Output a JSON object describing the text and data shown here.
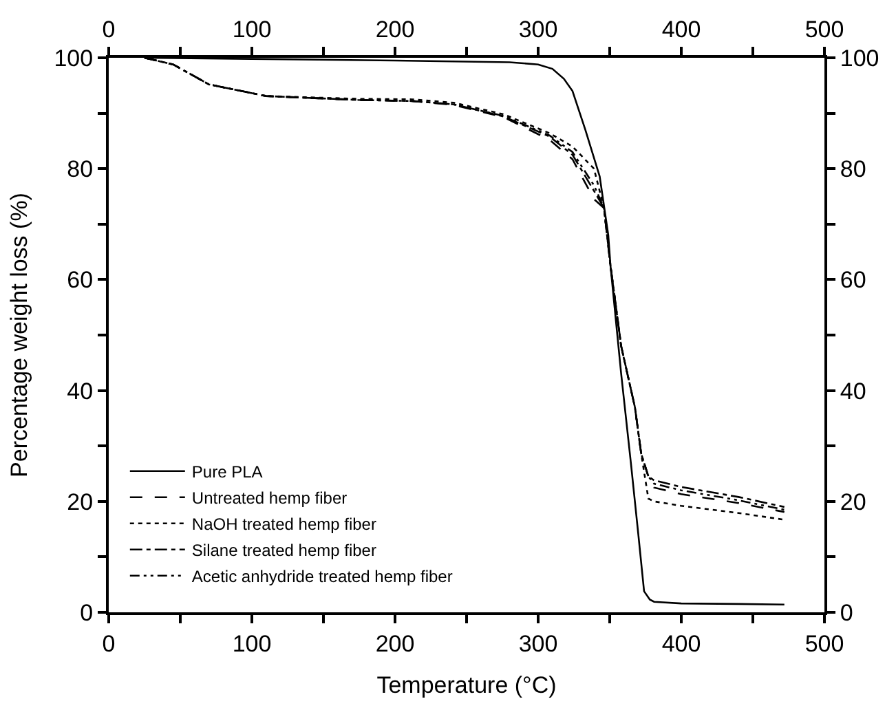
{
  "chart_data": {
    "type": "line",
    "xlabel": "Temperature (°C)",
    "ylabel": "Percentage weight loss (%)",
    "xlim": [
      0,
      500
    ],
    "xticks": [
      0,
      {
        "value": 50,
        "label": null
      },
      100,
      {
        "value": 150,
        "label": null
      },
      200,
      {
        "value": 250,
        "label": null
      },
      300,
      {
        "value": 350,
        "label": null
      },
      400,
      {
        "value": 450,
        "label": null
      },
      500
    ],
    "x2lim": [
      0,
      500
    ],
    "x2ticks": [
      0,
      {
        "value": 50,
        "label": null
      },
      100,
      {
        "value": 150,
        "label": null
      },
      200,
      {
        "value": 250,
        "label": null
      },
      300,
      {
        "value": 350,
        "label": null
      },
      400,
      {
        "value": 450,
        "label": null
      },
      500
    ],
    "ylim": [
      0,
      100
    ],
    "yticks": [
      0,
      {
        "value": 10,
        "label": null
      },
      20,
      {
        "value": 30,
        "label": null
      },
      40,
      {
        "value": 50,
        "label": null
      },
      60,
      {
        "value": 70,
        "label": null
      },
      80,
      {
        "value": 90,
        "label": null
      },
      100
    ],
    "y2lim": [
      0,
      100
    ],
    "y2ticks": [
      0,
      {
        "value": 10,
        "label": null
      },
      20,
      {
        "value": 30,
        "label": null
      },
      40,
      {
        "value": 50,
        "label": null
      },
      60,
      {
        "value": 70,
        "label": null
      },
      80,
      {
        "value": 90,
        "label": null
      },
      100
    ],
    "legend": "bottom left",
    "marker": "none",
    "series": [
      {
        "name": "Pure PLA",
        "color": "#000000",
        "line_style": "solid",
        "x": [
          25,
          100,
          200,
          280,
          300,
          310,
          318,
          324,
          333,
          343,
          349,
          350.5,
          358,
          364.8,
          370,
          374,
          378,
          381,
          400,
          440,
          472
        ],
        "values": [
          100,
          99.8,
          99.5,
          99.2,
          98.8,
          98,
          96.2,
          94,
          87,
          78.6,
          68,
          62.6,
          43,
          26.9,
          14,
          3.8,
          2.3,
          1.9,
          1.6,
          1.5,
          1.4
        ]
      },
      {
        "name": "Untreated hemp fiber",
        "color": "#000000",
        "line_style": "dashed",
        "x": [
          25,
          45,
          70,
          110,
          174,
          212,
          241,
          276,
          308,
          324,
          339,
          346,
          350.5,
          358,
          367.6,
          372,
          377,
          381,
          400,
          440,
          472
        ],
        "values": [
          100,
          98.8,
          95.2,
          93.1,
          92.4,
          92.2,
          91.5,
          89.3,
          85.2,
          81.7,
          74.5,
          72.9,
          62.6,
          48,
          37,
          28.6,
          24.5,
          22.5,
          21.3,
          19.7,
          18.1
        ]
      },
      {
        "name": "NaOH treated hemp fiber",
        "color": "#000000",
        "line_style": "dotted",
        "x": [
          25,
          45,
          70,
          110,
          174,
          212,
          241,
          276,
          308,
          324,
          339,
          346,
          350.5,
          358,
          367.6,
          372,
          377,
          381,
          400,
          440,
          472
        ],
        "values": [
          100,
          98.8,
          95.2,
          93.1,
          92.6,
          92.5,
          91.9,
          89.8,
          86.4,
          84,
          80,
          72.9,
          62.6,
          48,
          37,
          28.6,
          20.5,
          20,
          19.2,
          17.9,
          16.7
        ]
      },
      {
        "name": "Silane treated hemp fiber",
        "color": "#000000",
        "line_style": "dashdot",
        "x": [
          25,
          45,
          70,
          110,
          174,
          212,
          241,
          276,
          308,
          324,
          339,
          346,
          350.5,
          358,
          367.6,
          372,
          377,
          381,
          400,
          440,
          472
        ],
        "values": [
          100,
          98.8,
          95.2,
          93.1,
          92.4,
          92.2,
          91.6,
          89.4,
          85.8,
          82.5,
          76,
          72.9,
          62.6,
          48,
          37,
          28.6,
          24.5,
          23.8,
          22.6,
          20.8,
          19
        ]
      },
      {
        "name": "Acetic anhydride treated hemp fiber",
        "color": "#000000",
        "line_style": "dashdotdot",
        "x": [
          25,
          45,
          70,
          110,
          174,
          212,
          241,
          276,
          308,
          324,
          339,
          346,
          350.5,
          358,
          367.6,
          372,
          377,
          381,
          400,
          440,
          472
        ],
        "values": [
          100,
          98.8,
          95.2,
          93.1,
          92.4,
          92.2,
          91.6,
          89.5,
          86,
          83,
          77,
          72.9,
          62.6,
          48,
          37,
          28.6,
          24.5,
          23.2,
          22,
          20.2,
          18.5
        ]
      }
    ]
  }
}
